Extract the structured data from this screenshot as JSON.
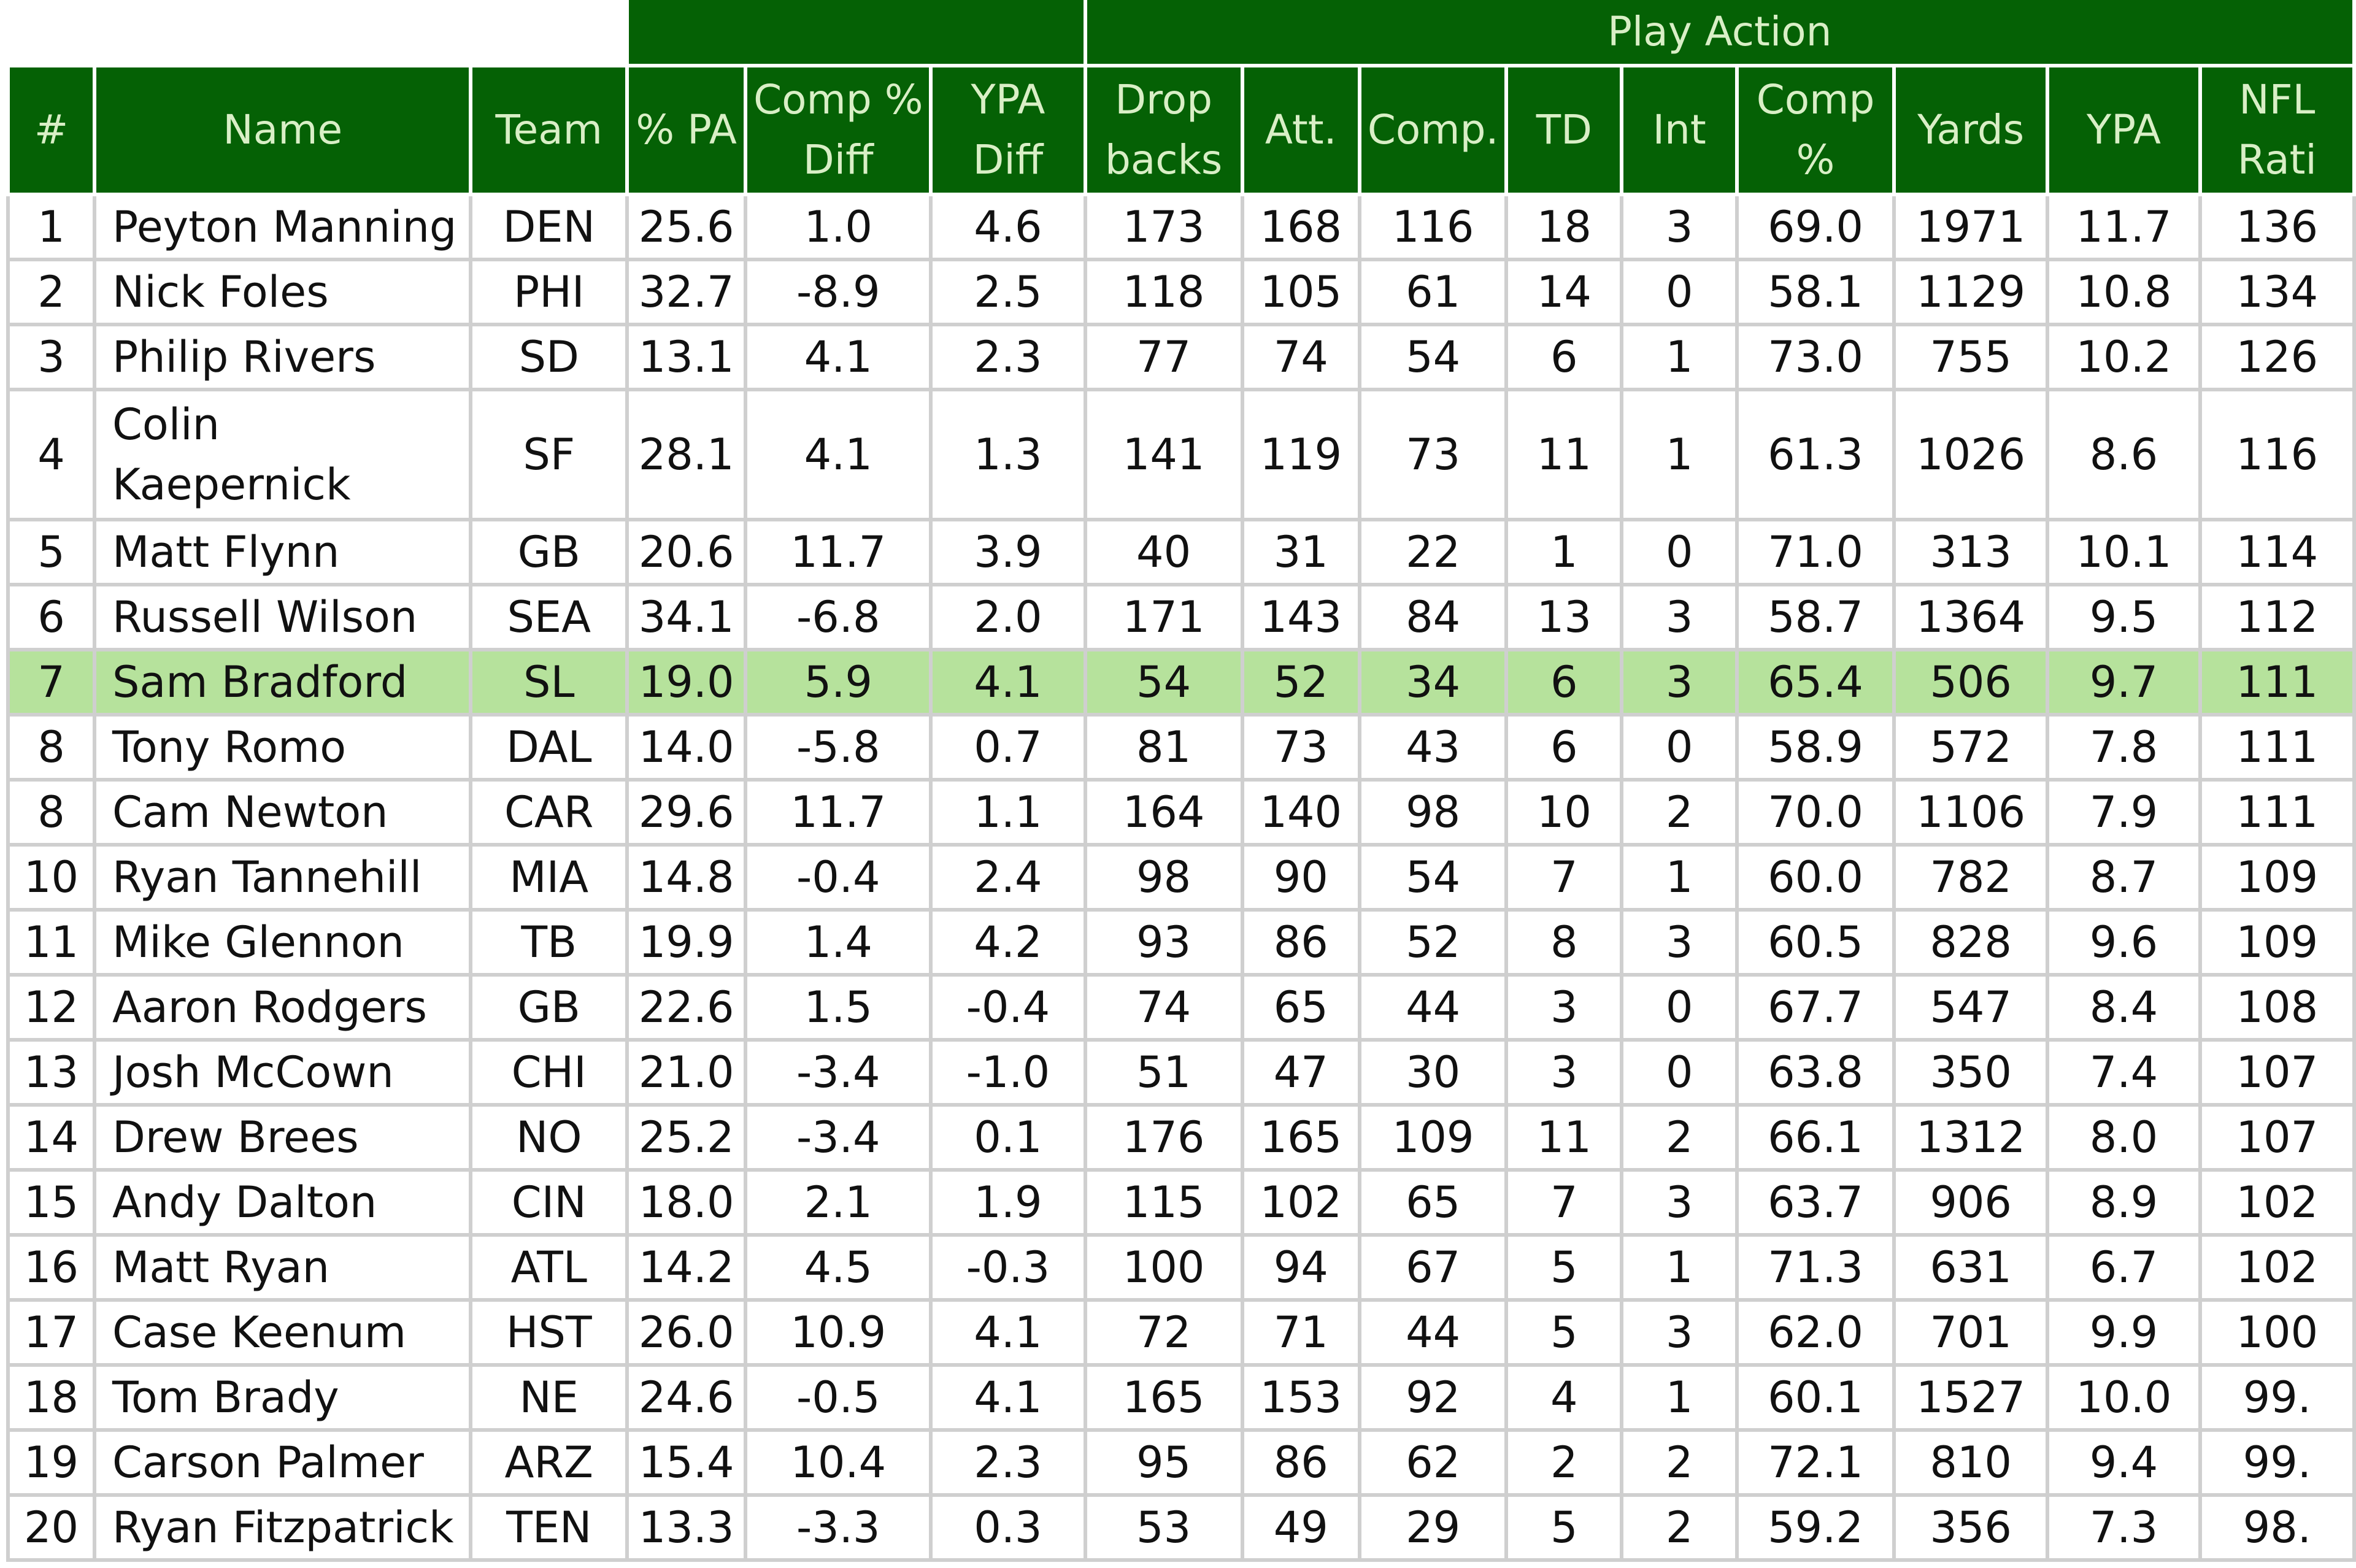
{
  "colors": {
    "header_bg": "#056105",
    "header_text": "#d9efc6",
    "grid_line": "#cfcfcf",
    "highlight_row": "#b6e29c"
  },
  "table": {
    "group_header": "Play Action",
    "columns": [
      "#",
      "Name",
      "Team",
      "% PA",
      "Comp % Diff",
      "YPA Diff",
      "Drop backs",
      "Att.",
      "Comp.",
      "TD",
      "Int",
      "Comp %",
      "Yards",
      "YPA",
      "NFL Rati"
    ],
    "rows": [
      {
        "rank": "1",
        "name": "Peyton Manning",
        "team": "DEN",
        "pct_pa": "25.6",
        "comp_diff": "1.0",
        "ypa_diff": "4.6",
        "dropbacks": "173",
        "att": "168",
        "comp": "116",
        "td": "18",
        "int": "3",
        "comp_pct": "69.0",
        "yards": "1971",
        "ypa": "11.7",
        "rating": "136"
      },
      {
        "rank": "2",
        "name": "Nick Foles",
        "team": "PHI",
        "pct_pa": "32.7",
        "comp_diff": "-8.9",
        "ypa_diff": "2.5",
        "dropbacks": "118",
        "att": "105",
        "comp": "61",
        "td": "14",
        "int": "0",
        "comp_pct": "58.1",
        "yards": "1129",
        "ypa": "10.8",
        "rating": "134"
      },
      {
        "rank": "3",
        "name": "Philip Rivers",
        "team": "SD",
        "pct_pa": "13.1",
        "comp_diff": "4.1",
        "ypa_diff": "2.3",
        "dropbacks": "77",
        "att": "74",
        "comp": "54",
        "td": "6",
        "int": "1",
        "comp_pct": "73.0",
        "yards": "755",
        "ypa": "10.2",
        "rating": "126"
      },
      {
        "rank": "4",
        "name": "Colin Kaepernick",
        "team": "SF",
        "pct_pa": "28.1",
        "comp_diff": "4.1",
        "ypa_diff": "1.3",
        "dropbacks": "141",
        "att": "119",
        "comp": "73",
        "td": "11",
        "int": "1",
        "comp_pct": "61.3",
        "yards": "1026",
        "ypa": "8.6",
        "rating": "116"
      },
      {
        "rank": "5",
        "name": "Matt Flynn",
        "team": "GB",
        "pct_pa": "20.6",
        "comp_diff": "11.7",
        "ypa_diff": "3.9",
        "dropbacks": "40",
        "att": "31",
        "comp": "22",
        "td": "1",
        "int": "0",
        "comp_pct": "71.0",
        "yards": "313",
        "ypa": "10.1",
        "rating": "114"
      },
      {
        "rank": "6",
        "name": "Russell Wilson",
        "team": "SEA",
        "pct_pa": "34.1",
        "comp_diff": "-6.8",
        "ypa_diff": "2.0",
        "dropbacks": "171",
        "att": "143",
        "comp": "84",
        "td": "13",
        "int": "3",
        "comp_pct": "58.7",
        "yards": "1364",
        "ypa": "9.5",
        "rating": "112"
      },
      {
        "rank": "7",
        "name": "Sam Bradford",
        "team": "SL",
        "pct_pa": "19.0",
        "comp_diff": "5.9",
        "ypa_diff": "4.1",
        "dropbacks": "54",
        "att": "52",
        "comp": "34",
        "td": "6",
        "int": "3",
        "comp_pct": "65.4",
        "yards": "506",
        "ypa": "9.7",
        "rating": "111"
      },
      {
        "rank": "8",
        "name": "Tony Romo",
        "team": "DAL",
        "pct_pa": "14.0",
        "comp_diff": "-5.8",
        "ypa_diff": "0.7",
        "dropbacks": "81",
        "att": "73",
        "comp": "43",
        "td": "6",
        "int": "0",
        "comp_pct": "58.9",
        "yards": "572",
        "ypa": "7.8",
        "rating": "111"
      },
      {
        "rank": "8",
        "name": "Cam Newton",
        "team": "CAR",
        "pct_pa": "29.6",
        "comp_diff": "11.7",
        "ypa_diff": "1.1",
        "dropbacks": "164",
        "att": "140",
        "comp": "98",
        "td": "10",
        "int": "2",
        "comp_pct": "70.0",
        "yards": "1106",
        "ypa": "7.9",
        "rating": "111"
      },
      {
        "rank": "10",
        "name": "Ryan Tannehill",
        "team": "MIA",
        "pct_pa": "14.8",
        "comp_diff": "-0.4",
        "ypa_diff": "2.4",
        "dropbacks": "98",
        "att": "90",
        "comp": "54",
        "td": "7",
        "int": "1",
        "comp_pct": "60.0",
        "yards": "782",
        "ypa": "8.7",
        "rating": "109"
      },
      {
        "rank": "11",
        "name": "Mike Glennon",
        "team": "TB",
        "pct_pa": "19.9",
        "comp_diff": "1.4",
        "ypa_diff": "4.2",
        "dropbacks": "93",
        "att": "86",
        "comp": "52",
        "td": "8",
        "int": "3",
        "comp_pct": "60.5",
        "yards": "828",
        "ypa": "9.6",
        "rating": "109"
      },
      {
        "rank": "12",
        "name": "Aaron Rodgers",
        "team": "GB",
        "pct_pa": "22.6",
        "comp_diff": "1.5",
        "ypa_diff": "-0.4",
        "dropbacks": "74",
        "att": "65",
        "comp": "44",
        "td": "3",
        "int": "0",
        "comp_pct": "67.7",
        "yards": "547",
        "ypa": "8.4",
        "rating": "108"
      },
      {
        "rank": "13",
        "name": "Josh McCown",
        "team": "CHI",
        "pct_pa": "21.0",
        "comp_diff": "-3.4",
        "ypa_diff": "-1.0",
        "dropbacks": "51",
        "att": "47",
        "comp": "30",
        "td": "3",
        "int": "0",
        "comp_pct": "63.8",
        "yards": "350",
        "ypa": "7.4",
        "rating": "107"
      },
      {
        "rank": "14",
        "name": "Drew Brees",
        "team": "NO",
        "pct_pa": "25.2",
        "comp_diff": "-3.4",
        "ypa_diff": "0.1",
        "dropbacks": "176",
        "att": "165",
        "comp": "109",
        "td": "11",
        "int": "2",
        "comp_pct": "66.1",
        "yards": "1312",
        "ypa": "8.0",
        "rating": "107"
      },
      {
        "rank": "15",
        "name": "Andy Dalton",
        "team": "CIN",
        "pct_pa": "18.0",
        "comp_diff": "2.1",
        "ypa_diff": "1.9",
        "dropbacks": "115",
        "att": "102",
        "comp": "65",
        "td": "7",
        "int": "3",
        "comp_pct": "63.7",
        "yards": "906",
        "ypa": "8.9",
        "rating": "102"
      },
      {
        "rank": "16",
        "name": "Matt Ryan",
        "team": "ATL",
        "pct_pa": "14.2",
        "comp_diff": "4.5",
        "ypa_diff": "-0.3",
        "dropbacks": "100",
        "att": "94",
        "comp": "67",
        "td": "5",
        "int": "1",
        "comp_pct": "71.3",
        "yards": "631",
        "ypa": "6.7",
        "rating": "102"
      },
      {
        "rank": "17",
        "name": "Case Keenum",
        "team": "HST",
        "pct_pa": "26.0",
        "comp_diff": "10.9",
        "ypa_diff": "4.1",
        "dropbacks": "72",
        "att": "71",
        "comp": "44",
        "td": "5",
        "int": "3",
        "comp_pct": "62.0",
        "yards": "701",
        "ypa": "9.9",
        "rating": "100"
      },
      {
        "rank": "18",
        "name": "Tom Brady",
        "team": "NE",
        "pct_pa": "24.6",
        "comp_diff": "-0.5",
        "ypa_diff": "4.1",
        "dropbacks": "165",
        "att": "153",
        "comp": "92",
        "td": "4",
        "int": "1",
        "comp_pct": "60.1",
        "yards": "1527",
        "ypa": "10.0",
        "rating": "99."
      },
      {
        "rank": "19",
        "name": "Carson Palmer",
        "team": "ARZ",
        "pct_pa": "15.4",
        "comp_diff": "10.4",
        "ypa_diff": "2.3",
        "dropbacks": "95",
        "att": "86",
        "comp": "62",
        "td": "2",
        "int": "2",
        "comp_pct": "72.1",
        "yards": "810",
        "ypa": "9.4",
        "rating": "99."
      },
      {
        "rank": "20",
        "name": "Ryan Fitzpatrick",
        "team": "TEN",
        "pct_pa": "13.3",
        "comp_diff": "-3.3",
        "ypa_diff": "0.3",
        "dropbacks": "53",
        "att": "49",
        "comp": "29",
        "td": "5",
        "int": "2",
        "comp_pct": "59.2",
        "yards": "356",
        "ypa": "7.3",
        "rating": "98."
      }
    ]
  }
}
